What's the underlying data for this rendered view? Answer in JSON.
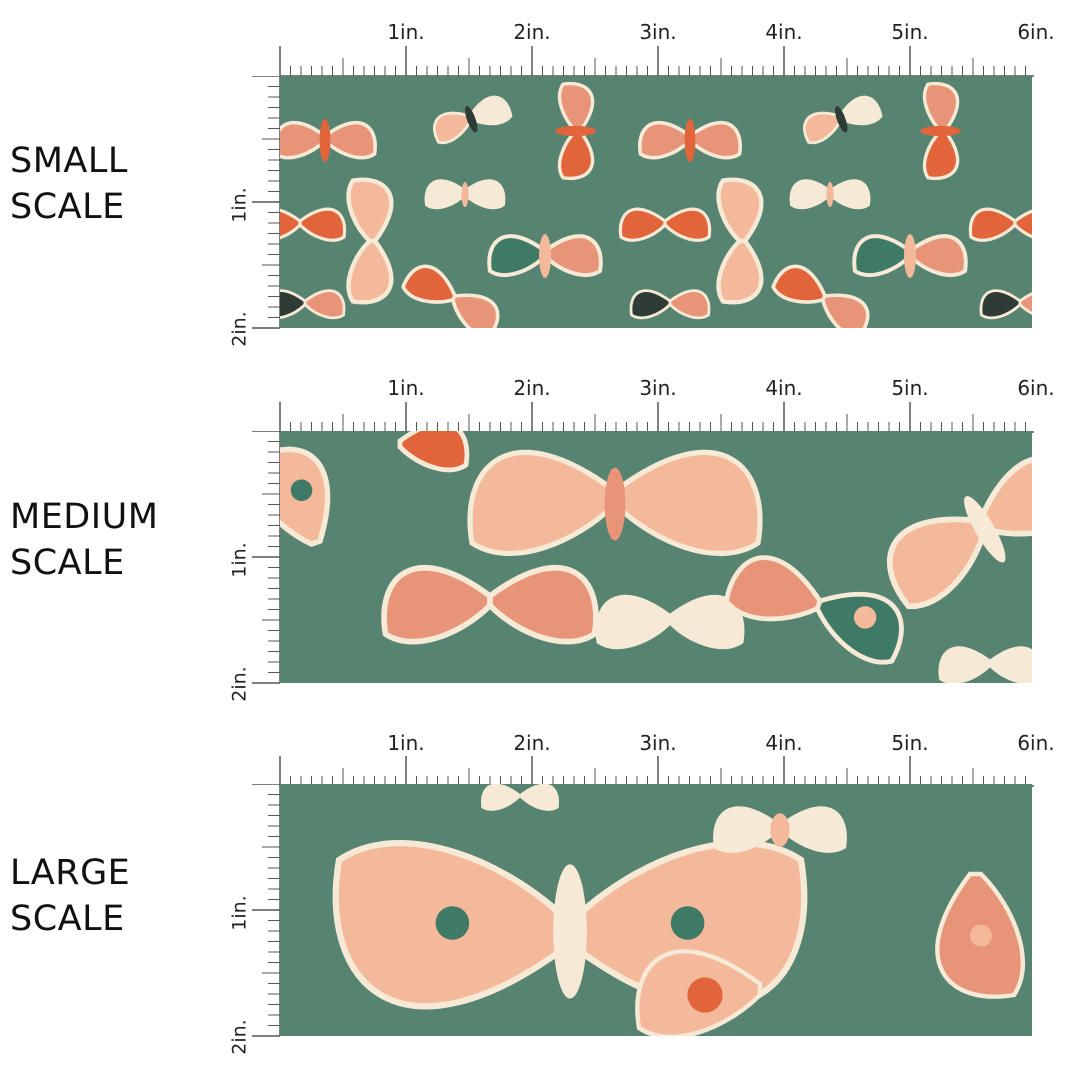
{
  "colors": {
    "background": "#578371",
    "cream": "#f6ead6",
    "peach": "#f3b99a",
    "salmon": "#e89478",
    "orange": "#e2643b",
    "dark": "#2f3b35",
    "teal": "#3f7a66"
  },
  "inch_labels": [
    "1in.",
    "2in.",
    "3in.",
    "4in.",
    "5in.",
    "6in."
  ],
  "vertical_labels": [
    "1in.",
    "2in."
  ],
  "sections": [
    {
      "id": "small",
      "label_line1": "SMALL",
      "label_line2": "SCALE"
    },
    {
      "id": "medium",
      "label_line1": "MEDIUM",
      "label_line2": "SCALE"
    },
    {
      "id": "large",
      "label_line1": "LARGE",
      "label_line2": "SCALE"
    }
  ]
}
